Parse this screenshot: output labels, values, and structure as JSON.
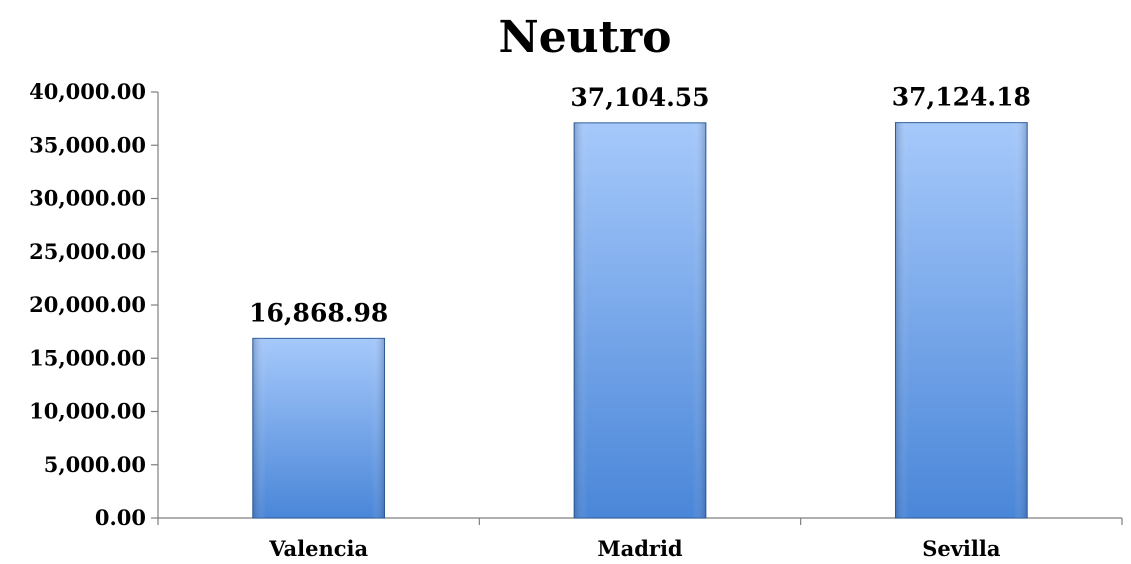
{
  "chart_data": {
    "type": "bar",
    "title": "Neutro",
    "categories": [
      "Valencia",
      "Madrid",
      "Sevilla"
    ],
    "values": [
      16868.98,
      37104.55,
      37124.18
    ],
    "data_labels": [
      "16,868.98",
      "37,104.55",
      "37,124.18"
    ],
    "xlabel": "",
    "ylabel": "",
    "ylim": [
      0,
      40000
    ],
    "y_ticks": [
      0,
      5000,
      10000,
      15000,
      20000,
      25000,
      30000,
      35000,
      40000
    ],
    "y_tick_labels": [
      "0.00",
      "5,000.00",
      "10,000.00",
      "15,000.00",
      "20,000.00",
      "25,000.00",
      "30,000.00",
      "35,000.00",
      "40,000.00"
    ],
    "grid": false,
    "legend": "none",
    "bar_color_top": "#a6c9fb",
    "bar_color_bottom": "#4a86d8",
    "bar_edge_color": "#2f5d9a"
  }
}
